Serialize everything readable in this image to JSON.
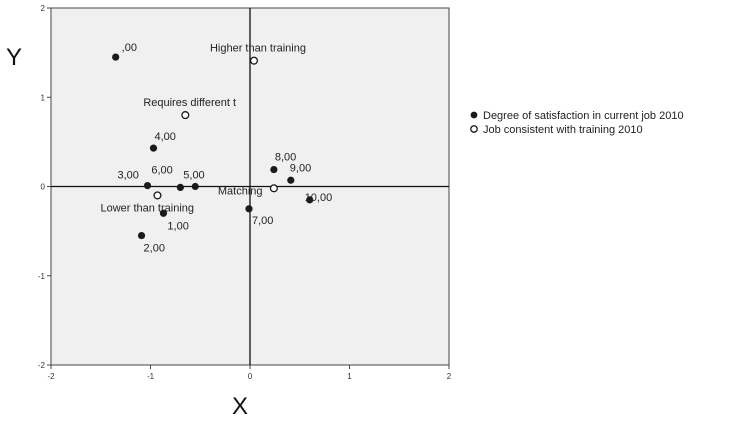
{
  "chart_data": {
    "type": "scatter",
    "xlabel": "X",
    "ylabel": "Y",
    "xlim": [
      -2,
      2
    ],
    "ylim": [
      -2,
      2
    ],
    "xticks": [
      -2,
      -1,
      0,
      1,
      2
    ],
    "yticks": [
      -2,
      -1,
      0,
      1,
      2
    ],
    "grid": false,
    "reference_lines": {
      "x": 0,
      "y": 0
    },
    "legend_position": "right",
    "series": [
      {
        "name": "Degree of satisfaction in current job 2010",
        "marker": "filled-circle",
        "points": [
          {
            "label": ",00",
            "x": -1.35,
            "y": 1.45
          },
          {
            "label": "1,00",
            "x": -0.87,
            "y": -0.3
          },
          {
            "label": "2,00",
            "x": -1.09,
            "y": -0.55
          },
          {
            "label": "3,00",
            "x": -1.03,
            "y": 0.01
          },
          {
            "label": "4,00",
            "x": -0.97,
            "y": 0.43
          },
          {
            "label": "5,00",
            "x": -0.55,
            "y": 0.0
          },
          {
            "label": "6,00",
            "x": -0.7,
            "y": -0.01
          },
          {
            "label": "7,00",
            "x": -0.01,
            "y": -0.25
          },
          {
            "label": "8,00",
            "x": 0.24,
            "y": 0.19
          },
          {
            "label": "9,00",
            "x": 0.41,
            "y": 0.07
          },
          {
            "label": "10,00",
            "x": 0.6,
            "y": -0.15
          }
        ]
      },
      {
        "name": "Job consistent with training 2010",
        "marker": "open-circle",
        "points": [
          {
            "label": "Higher than training",
            "x": 0.04,
            "y": 1.41
          },
          {
            "label": "Requires different t",
            "x": -0.65,
            "y": 0.8
          },
          {
            "label": "Matching",
            "x": 0.24,
            "y": -0.02
          },
          {
            "label": "Lower than training",
            "x": -0.93,
            "y": -0.1
          }
        ]
      }
    ]
  }
}
